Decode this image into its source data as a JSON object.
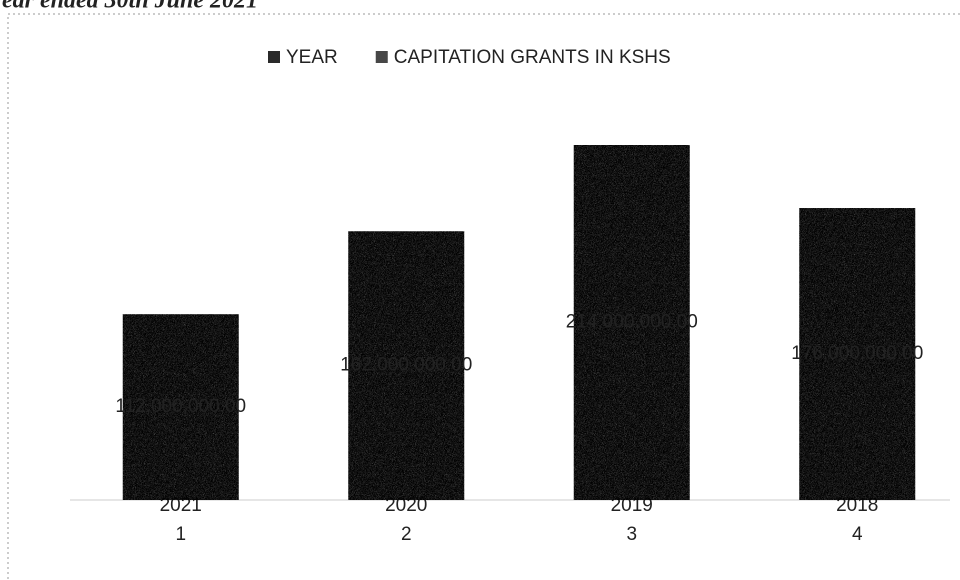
{
  "chart_data": {
    "type": "stacked_bar",
    "title": "ear ended 30th June 2021",
    "categories": [
      "1",
      "2",
      "3",
      "4"
    ],
    "series": [
      {
        "name": "YEAR",
        "color": "#2a2a2a",
        "values": [
          2021,
          2020,
          2019,
          2018
        ]
      },
      {
        "name": "CAPITATION GRANTS IN KSHS",
        "color": "#474747",
        "values": [
          112000000,
          162000000,
          214000000,
          176000000
        ],
        "value_labels": [
          "112,000,000.00",
          "162,000,000.00",
          "214,000,000.00",
          "176,000,000.00"
        ]
      }
    ],
    "legend": "top"
  }
}
